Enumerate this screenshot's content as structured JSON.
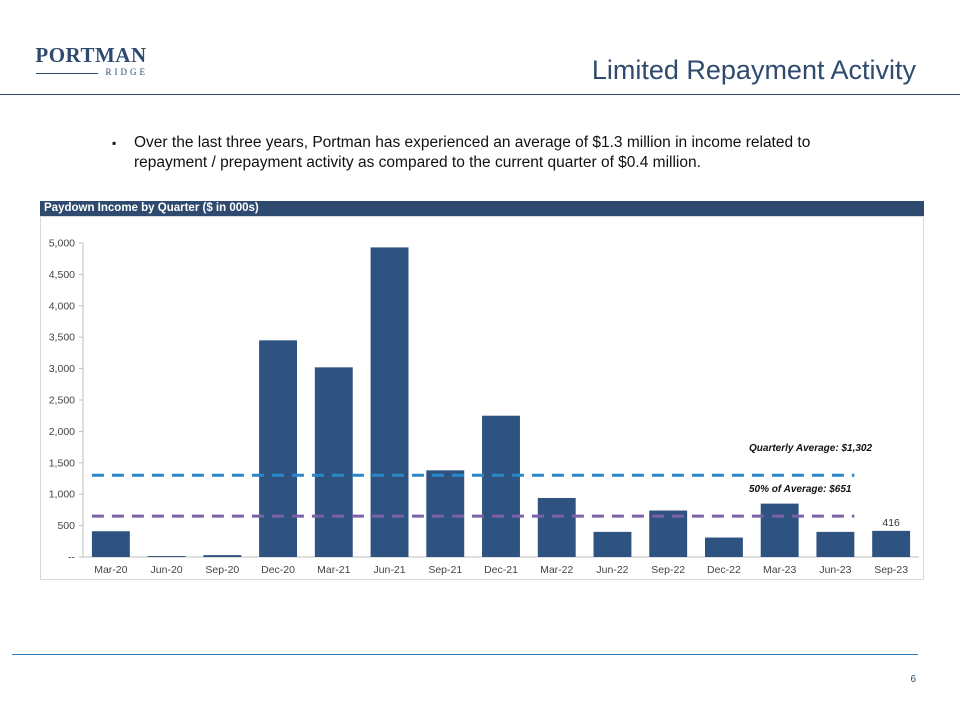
{
  "logo": {
    "main": "PORTMAN",
    "sub": "RIDGE"
  },
  "title": "Limited Repayment Activity",
  "bullet": "Over the last three years, Portman has experienced an average of $1.3 million in income related to repayment / prepayment activity as compared to the current quarter of $0.4 million.",
  "bullet_marker": "▪",
  "chart_header": "Paydown Income by Quarter ($ in 000s)",
  "page_number": "6",
  "colors": {
    "brand": "#2e4a6e",
    "bar": "#2e5380",
    "average_line": "#2b86c5",
    "half_line": "#7b62a8",
    "rule": "#2e7ec1"
  },
  "chart_data": {
    "type": "bar",
    "categories": [
      "Mar-20",
      "Jun-20",
      "Sep-20",
      "Dec-20",
      "Mar-21",
      "Jun-21",
      "Sep-21",
      "Dec-21",
      "Mar-22",
      "Jun-22",
      "Sep-22",
      "Dec-22",
      "Mar-23",
      "Jun-23",
      "Sep-23"
    ],
    "values": [
      410,
      15,
      30,
      3450,
      3020,
      4930,
      1380,
      2250,
      940,
      400,
      740,
      310,
      850,
      400,
      416
    ],
    "ylim": [
      0,
      5000
    ],
    "yticks": [
      0,
      500,
      1000,
      1500,
      2000,
      2500,
      3000,
      3500,
      4000,
      4500,
      5000
    ],
    "ytick_labels": [
      "--",
      "500",
      "1,000",
      "1,500",
      "2,000",
      "2,500",
      "3,000",
      "3,500",
      "4,000",
      "4,500",
      "5,000"
    ],
    "data_labels": [
      {
        "index": 14,
        "text": "416"
      }
    ],
    "reference_lines": [
      {
        "value": 1302,
        "label": "Quarterly Average: $1,302",
        "color": "#2b86c5"
      },
      {
        "value": 651,
        "label": "50% of Average: $651",
        "color": "#7b62a8"
      }
    ],
    "grid": false
  }
}
